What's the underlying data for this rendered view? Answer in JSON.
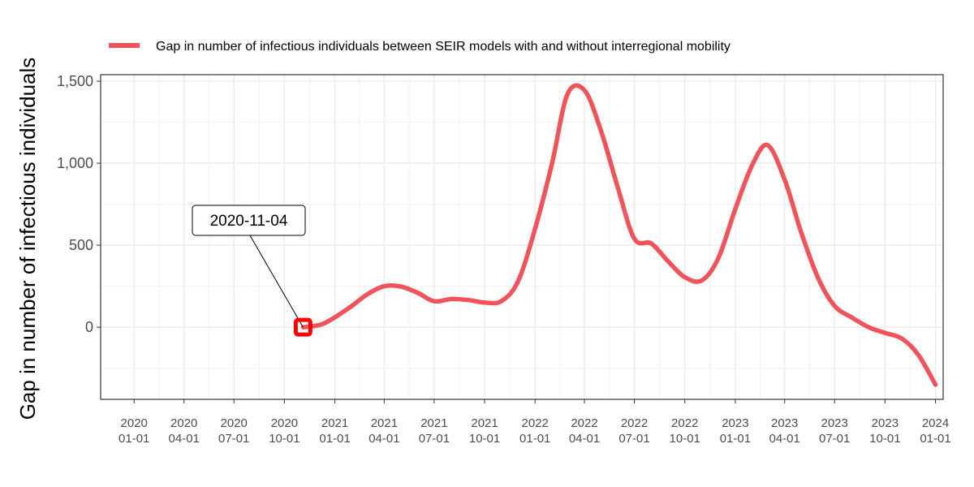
{
  "chart_data": {
    "type": "line",
    "xlabel": "",
    "ylabel": "Gap in number of infectious individuals",
    "x_range": [
      "2019-11-01",
      "2024-01-15"
    ],
    "ylim": [
      -440,
      1540
    ],
    "grid": true,
    "legend_position": "top",
    "x_ticks": [
      {
        "date": "2020-01-01",
        "label1": "2020",
        "label2": "01-01"
      },
      {
        "date": "2020-04-01",
        "label1": "2020",
        "label2": "04-01"
      },
      {
        "date": "2020-07-01",
        "label1": "2020",
        "label2": "07-01"
      },
      {
        "date": "2020-10-01",
        "label1": "2020",
        "label2": "10-01"
      },
      {
        "date": "2021-01-01",
        "label1": "2021",
        "label2": "01-01"
      },
      {
        "date": "2021-04-01",
        "label1": "2021",
        "label2": "04-01"
      },
      {
        "date": "2021-07-01",
        "label1": "2021",
        "label2": "07-01"
      },
      {
        "date": "2021-10-01",
        "label1": "2021",
        "label2": "10-01"
      },
      {
        "date": "2022-01-01",
        "label1": "2022",
        "label2": "01-01"
      },
      {
        "date": "2022-04-01",
        "label1": "2022",
        "label2": "04-01"
      },
      {
        "date": "2022-07-01",
        "label1": "2022",
        "label2": "07-01"
      },
      {
        "date": "2022-10-01",
        "label1": "2022",
        "label2": "10-01"
      },
      {
        "date": "2023-01-01",
        "label1": "2023",
        "label2": "01-01"
      },
      {
        "date": "2023-04-01",
        "label1": "2023",
        "label2": "04-01"
      },
      {
        "date": "2023-07-01",
        "label1": "2023",
        "label2": "07-01"
      },
      {
        "date": "2023-10-01",
        "label1": "2023",
        "label2": "10-01"
      },
      {
        "date": "2024-01-01",
        "label1": "2024",
        "label2": "01-01"
      }
    ],
    "y_ticks": [
      {
        "value": 0,
        "label": "0"
      },
      {
        "value": 500,
        "label": "500"
      },
      {
        "value": 1000,
        "label": "1,000"
      },
      {
        "value": 1500,
        "label": "1,500"
      }
    ],
    "series": [
      {
        "name": "Gap in number of infectious individuals between SEIR models with and without interregional mobility",
        "color": "#f0545a",
        "points": [
          {
            "x": "2020-11-04",
            "y": 0
          },
          {
            "x": "2020-11-20",
            "y": 5
          },
          {
            "x": "2020-12-10",
            "y": 20
          },
          {
            "x": "2021-01-01",
            "y": 60
          },
          {
            "x": "2021-02-01",
            "y": 130
          },
          {
            "x": "2021-03-01",
            "y": 200
          },
          {
            "x": "2021-04-01",
            "y": 250
          },
          {
            "x": "2021-05-01",
            "y": 248
          },
          {
            "x": "2021-06-01",
            "y": 210
          },
          {
            "x": "2021-07-01",
            "y": 158
          },
          {
            "x": "2021-08-01",
            "y": 172
          },
          {
            "x": "2021-09-01",
            "y": 166
          },
          {
            "x": "2021-10-01",
            "y": 150
          },
          {
            "x": "2021-11-01",
            "y": 160
          },
          {
            "x": "2021-12-01",
            "y": 280
          },
          {
            "x": "2022-01-01",
            "y": 600
          },
          {
            "x": "2022-02-01",
            "y": 1000
          },
          {
            "x": "2022-03-01",
            "y": 1420
          },
          {
            "x": "2022-04-01",
            "y": 1445
          },
          {
            "x": "2022-05-01",
            "y": 1200
          },
          {
            "x": "2022-06-01",
            "y": 850
          },
          {
            "x": "2022-07-01",
            "y": 540
          },
          {
            "x": "2022-08-01",
            "y": 510
          },
          {
            "x": "2022-09-01",
            "y": 400
          },
          {
            "x": "2022-10-01",
            "y": 305
          },
          {
            "x": "2022-11-01",
            "y": 285
          },
          {
            "x": "2022-12-01",
            "y": 420
          },
          {
            "x": "2023-01-01",
            "y": 720
          },
          {
            "x": "2023-02-01",
            "y": 990
          },
          {
            "x": "2023-03-01",
            "y": 1110
          },
          {
            "x": "2023-04-01",
            "y": 900
          },
          {
            "x": "2023-05-01",
            "y": 580
          },
          {
            "x": "2023-06-01",
            "y": 300
          },
          {
            "x": "2023-07-01",
            "y": 130
          },
          {
            "x": "2023-08-01",
            "y": 60
          },
          {
            "x": "2023-09-01",
            "y": 0
          },
          {
            "x": "2023-10-01",
            "y": -35
          },
          {
            "x": "2023-11-01",
            "y": -70
          },
          {
            "x": "2023-12-01",
            "y": -170
          },
          {
            "x": "2024-01-01",
            "y": -350
          }
        ]
      }
    ],
    "annotation": {
      "label": "2020-11-04",
      "x": "2020-11-04",
      "y": 0,
      "marker_color": "#ff0000"
    }
  }
}
